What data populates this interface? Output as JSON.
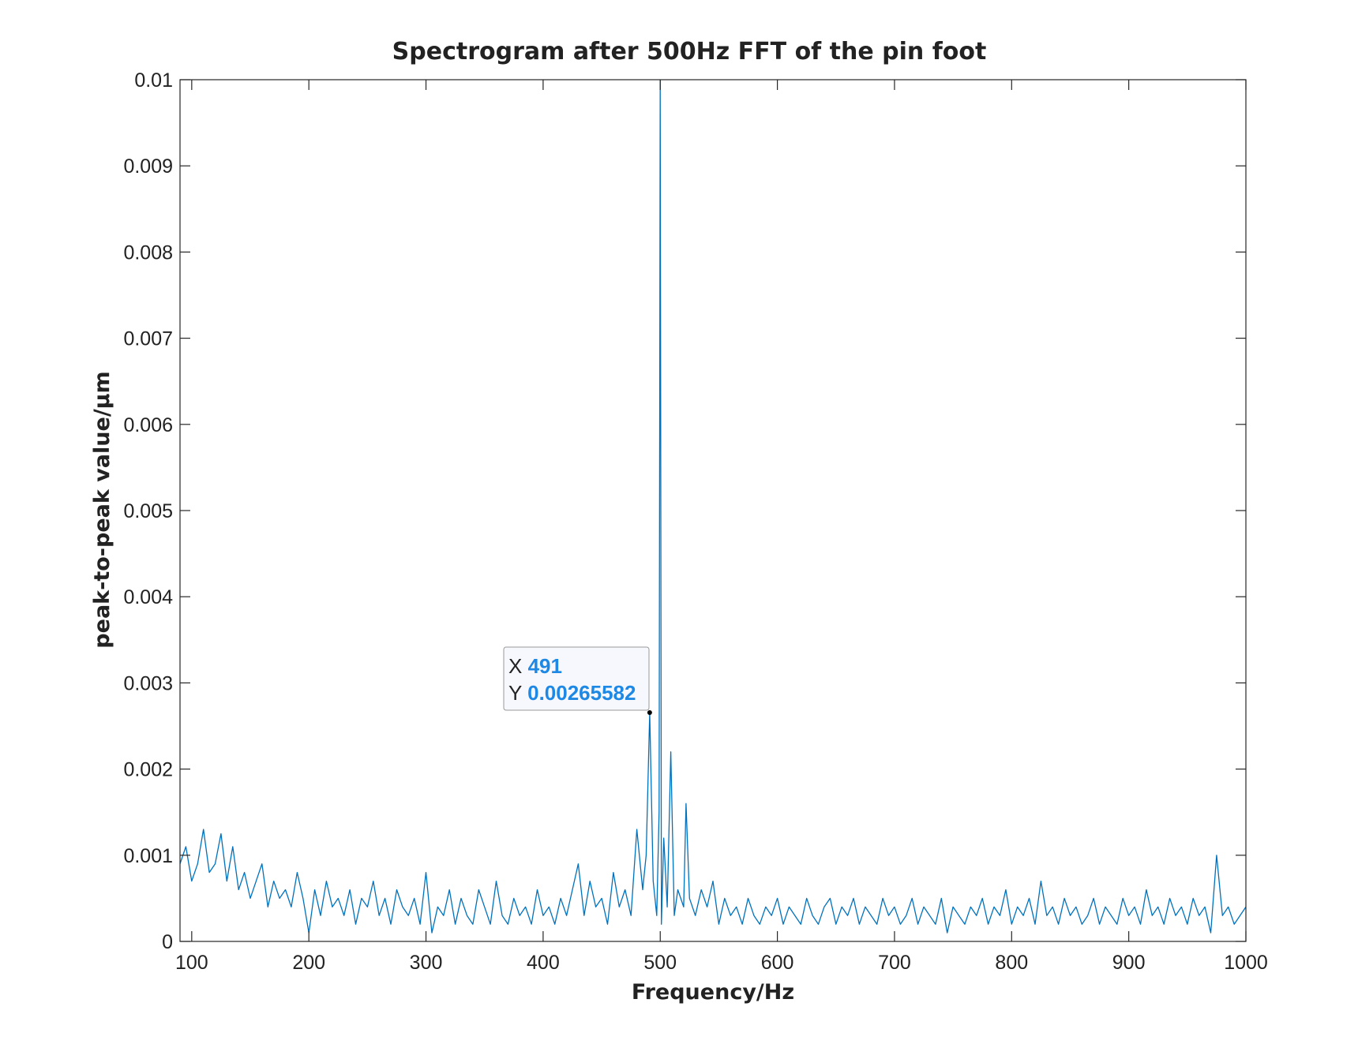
{
  "chart_data": {
    "type": "line",
    "title": "Spectrogram after 500Hz FFT of the pin foot",
    "xlabel": "Frequency/Hz",
    "ylabel": "peak-to-peak value/μm",
    "xlim": [
      90,
      1000
    ],
    "ylim": [
      0,
      0.01
    ],
    "x_ticks": [
      "100",
      "200",
      "300",
      "400",
      "500",
      "600",
      "700",
      "800",
      "900",
      "1000"
    ],
    "y_ticks": [
      "0",
      "0.001",
      "0.002",
      "0.003",
      "0.004",
      "0.005",
      "0.006",
      "0.007",
      "0.008",
      "0.009",
      "0.01"
    ],
    "grid": false,
    "legend": "none",
    "series_color": "#0072bd",
    "series": [
      {
        "x": [
          90,
          95,
          100,
          105,
          110,
          115,
          120,
          125,
          130,
          135,
          140,
          145,
          150,
          155,
          160,
          165,
          170,
          175,
          180,
          185,
          190,
          195,
          200,
          205,
          210,
          215,
          220,
          225,
          230,
          235,
          240,
          245,
          250,
          255,
          260,
          265,
          270,
          275,
          280,
          285,
          290,
          295,
          300,
          305,
          310,
          315,
          320,
          325,
          330,
          335,
          340,
          345,
          350,
          355,
          360,
          365,
          370,
          375,
          380,
          385,
          390,
          395,
          400,
          405,
          410,
          415,
          420,
          425,
          430,
          435,
          440,
          445,
          450,
          455,
          460,
          465,
          470,
          475,
          480,
          485,
          488,
          491,
          494,
          497,
          499,
          500,
          501,
          503,
          506,
          509,
          512,
          515,
          520,
          522,
          525,
          530,
          535,
          540,
          545,
          550,
          555,
          560,
          565,
          570,
          575,
          580,
          585,
          590,
          595,
          600,
          605,
          610,
          615,
          620,
          625,
          630,
          635,
          640,
          645,
          650,
          655,
          660,
          665,
          670,
          675,
          680,
          685,
          690,
          695,
          700,
          705,
          710,
          715,
          720,
          725,
          730,
          735,
          740,
          745,
          750,
          755,
          760,
          765,
          770,
          775,
          780,
          785,
          790,
          795,
          800,
          805,
          810,
          815,
          820,
          825,
          830,
          835,
          840,
          845,
          850,
          855,
          860,
          865,
          870,
          875,
          880,
          885,
          890,
          895,
          900,
          905,
          910,
          915,
          920,
          925,
          930,
          935,
          940,
          945,
          950,
          955,
          960,
          965,
          970,
          975,
          980,
          985,
          990,
          995,
          1000
        ],
        "y": [
          0.0009,
          0.0011,
          0.0007,
          0.0009,
          0.0013,
          0.0008,
          0.0009,
          0.00125,
          0.0007,
          0.0011,
          0.0006,
          0.0008,
          0.0005,
          0.0007,
          0.0009,
          0.0004,
          0.0007,
          0.0005,
          0.0006,
          0.0004,
          0.0008,
          0.0005,
          0.0001,
          0.0006,
          0.0003,
          0.0007,
          0.0004,
          0.0005,
          0.0003,
          0.0006,
          0.0002,
          0.0005,
          0.0004,
          0.0007,
          0.0003,
          0.0005,
          0.0002,
          0.0006,
          0.0004,
          0.0003,
          0.0005,
          0.0002,
          0.0008,
          0.0001,
          0.0004,
          0.0003,
          0.0006,
          0.0002,
          0.0005,
          0.0003,
          0.0002,
          0.0006,
          0.0004,
          0.0002,
          0.0007,
          0.0003,
          0.0002,
          0.0005,
          0.0003,
          0.0004,
          0.0002,
          0.0006,
          0.0003,
          0.0004,
          0.0002,
          0.0005,
          0.0003,
          0.0006,
          0.0009,
          0.0003,
          0.0007,
          0.0004,
          0.0005,
          0.0002,
          0.0008,
          0.0004,
          0.0006,
          0.0003,
          0.0013,
          0.0006,
          0.001,
          0.00265582,
          0.0007,
          0.0003,
          0.0015,
          0.01,
          0.0002,
          0.0012,
          0.0004,
          0.0022,
          0.0003,
          0.0006,
          0.0004,
          0.0016,
          0.0005,
          0.0003,
          0.0006,
          0.0004,
          0.0007,
          0.0002,
          0.0005,
          0.0003,
          0.0004,
          0.0002,
          0.0005,
          0.0003,
          0.0002,
          0.0004,
          0.0003,
          0.0005,
          0.0002,
          0.0004,
          0.0003,
          0.0002,
          0.0005,
          0.0003,
          0.0002,
          0.0004,
          0.0005,
          0.0002,
          0.0004,
          0.0003,
          0.0005,
          0.0002,
          0.0004,
          0.0003,
          0.0002,
          0.0005,
          0.0003,
          0.0004,
          0.0002,
          0.0003,
          0.0005,
          0.0002,
          0.0004,
          0.0003,
          0.0002,
          0.0005,
          0.0001,
          0.0004,
          0.0003,
          0.0002,
          0.0004,
          0.0003,
          0.0005,
          0.0002,
          0.0004,
          0.0003,
          0.0006,
          0.0002,
          0.0004,
          0.0003,
          0.0005,
          0.0002,
          0.0007,
          0.0003,
          0.0004,
          0.0002,
          0.0005,
          0.0003,
          0.0004,
          0.0002,
          0.0003,
          0.0005,
          0.0002,
          0.0004,
          0.0003,
          0.0002,
          0.0005,
          0.0003,
          0.0004,
          0.0002,
          0.0006,
          0.0003,
          0.0004,
          0.0002,
          0.0005,
          0.0003,
          0.0004,
          0.0002,
          0.0005,
          0.0003,
          0.0004,
          0.0001,
          0.001,
          0.0003,
          0.0004,
          0.0002,
          0.0003,
          0.0004
        ]
      }
    ],
    "datatip": {
      "x_key": "X",
      "x_value": "491",
      "y_key": "Y",
      "y_value": "0.00265582",
      "x": 491,
      "y": 0.00265582
    }
  }
}
